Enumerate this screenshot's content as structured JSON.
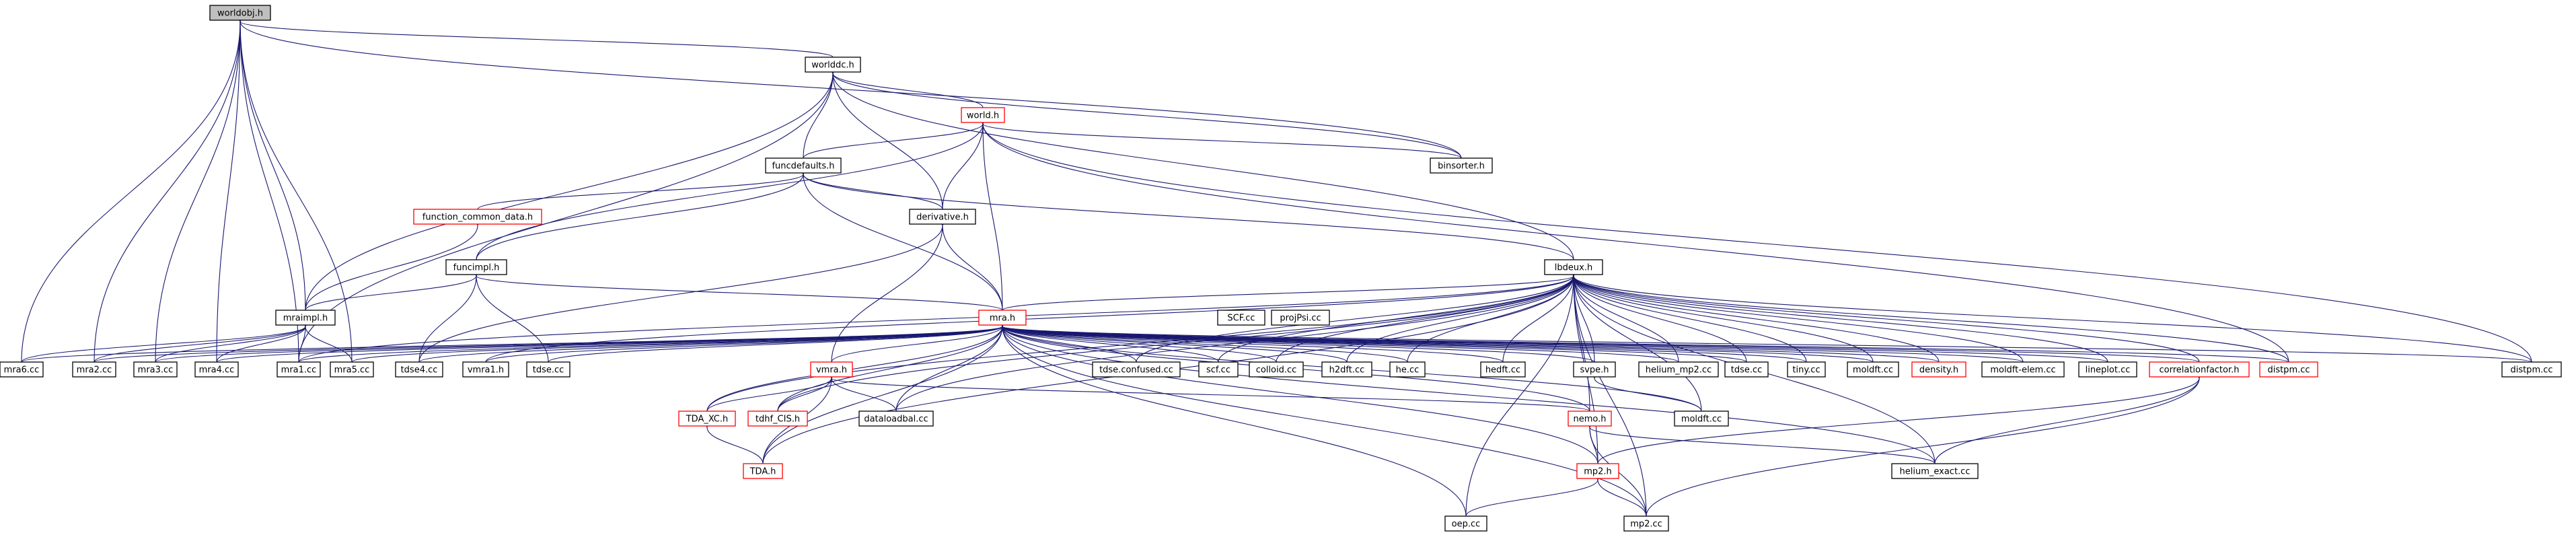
{
  "colors": {
    "edge": "#191970",
    "border_default": "#000000",
    "border_linked": "#ff0000",
    "root_fill": "#bfbfbf"
  },
  "nodes": [
    {
      "id": "worldobj",
      "label": "worldobj.h",
      "root": true
    },
    {
      "id": "worlddc",
      "label": "worlddc.h"
    },
    {
      "id": "world",
      "label": "world.h",
      "red": true
    },
    {
      "id": "funcdefaults",
      "label": "funcdefaults.h"
    },
    {
      "id": "binsorter",
      "label": "binsorter.h"
    },
    {
      "id": "fcd",
      "label": "function_common_data.h",
      "red": true
    },
    {
      "id": "derivative",
      "label": "derivative.h"
    },
    {
      "id": "funcimpl",
      "label": "funcimpl.h"
    },
    {
      "id": "lbdeux",
      "label": "lbdeux.h"
    },
    {
      "id": "mraimpl",
      "label": "mraimpl.h"
    },
    {
      "id": "mra",
      "label": "mra.h",
      "red": true
    },
    {
      "id": "scfcc",
      "label": "SCF.cc"
    },
    {
      "id": "projpsi",
      "label": "projPsi.cc"
    },
    {
      "id": "mra6",
      "label": "mra6.cc"
    },
    {
      "id": "mra2",
      "label": "mra2.cc"
    },
    {
      "id": "mra3",
      "label": "mra3.cc"
    },
    {
      "id": "mra4",
      "label": "mra4.cc"
    },
    {
      "id": "mra1",
      "label": "mra1.cc"
    },
    {
      "id": "mra5",
      "label": "mra5.cc"
    },
    {
      "id": "tdse4",
      "label": "tdse4.cc"
    },
    {
      "id": "vmra1",
      "label": "vmra1.h"
    },
    {
      "id": "tdsecc1",
      "label": "tdse.cc"
    },
    {
      "id": "tdseconf",
      "label": "tdse.confused.cc"
    },
    {
      "id": "scf",
      "label": "scf.cc"
    },
    {
      "id": "colloid",
      "label": "colloid.cc"
    },
    {
      "id": "h2dft",
      "label": "h2dft.cc"
    },
    {
      "id": "he",
      "label": "he.cc"
    },
    {
      "id": "hedft",
      "label": "hedft.cc"
    },
    {
      "id": "svpe",
      "label": "svpe.h"
    },
    {
      "id": "hemp2",
      "label": "helium_mp2.cc"
    },
    {
      "id": "tdsecc2",
      "label": "tdse.cc"
    },
    {
      "id": "tiny",
      "label": "tiny.cc"
    },
    {
      "id": "moldft1",
      "label": "moldft.cc"
    },
    {
      "id": "density",
      "label": "density.h",
      "red": true
    },
    {
      "id": "moldftelem",
      "label": "moldft-elem.cc"
    },
    {
      "id": "lineplot",
      "label": "lineplot.cc"
    },
    {
      "id": "corrfac",
      "label": "correlationfactor.h",
      "red": true
    },
    {
      "id": "distpmh",
      "label": "distpm.cc",
      "red": true
    },
    {
      "id": "distpm",
      "label": "distpm.cc"
    },
    {
      "id": "vmra",
      "label": "vmra.h",
      "red": true
    },
    {
      "id": "tdaxc",
      "label": "TDA_XC.h",
      "red": true
    },
    {
      "id": "tdhf",
      "label": "tdhf_CIS.h",
      "red": true
    },
    {
      "id": "dataload",
      "label": "dataloadbal.cc"
    },
    {
      "id": "nemo",
      "label": "nemo.h",
      "red": true
    },
    {
      "id": "moldft2",
      "label": "moldft.cc"
    },
    {
      "id": "tda",
      "label": "TDA.h",
      "red": true
    },
    {
      "id": "helexact",
      "label": "helium_exact.cc"
    },
    {
      "id": "mp2h",
      "label": "mp2.h",
      "red": true
    },
    {
      "id": "oep",
      "label": "oep.cc"
    },
    {
      "id": "mp2cc",
      "label": "mp2.cc"
    }
  ],
  "edges": [
    [
      "worldobj",
      "worlddc"
    ],
    [
      "worldobj",
      "binsorter"
    ],
    [
      "worldobj",
      "mraimpl"
    ],
    [
      "worldobj",
      "mra6"
    ],
    [
      "worldobj",
      "mra2"
    ],
    [
      "worldobj",
      "mra3"
    ],
    [
      "worldobj",
      "mra4"
    ],
    [
      "worldobj",
      "mra1"
    ],
    [
      "worldobj",
      "mra5"
    ],
    [
      "worlddc",
      "world"
    ],
    [
      "worlddc",
      "funcdefaults"
    ],
    [
      "worlddc",
      "derivative"
    ],
    [
      "worlddc",
      "lbdeux"
    ],
    [
      "worlddc",
      "mraimpl"
    ],
    [
      "worlddc",
      "mra1"
    ],
    [
      "worlddc",
      "binsorter"
    ],
    [
      "world",
      "funcdefaults"
    ],
    [
      "world",
      "binsorter"
    ],
    [
      "world",
      "derivative"
    ],
    [
      "world",
      "mra"
    ],
    [
      "world",
      "funcimpl"
    ],
    [
      "world",
      "distpm"
    ],
    [
      "world",
      "distpmh"
    ],
    [
      "funcdefaults",
      "fcd"
    ],
    [
      "funcdefaults",
      "funcimpl"
    ],
    [
      "funcdefaults",
      "derivative"
    ],
    [
      "funcdefaults",
      "mra"
    ],
    [
      "funcdefaults",
      "lbdeux"
    ],
    [
      "fcd",
      "mraimpl"
    ],
    [
      "derivative",
      "mra"
    ],
    [
      "derivative",
      "vmra"
    ],
    [
      "derivative",
      "tdse4"
    ],
    [
      "funcimpl",
      "mraimpl"
    ],
    [
      "funcimpl",
      "mra"
    ],
    [
      "funcimpl",
      "tdse4"
    ],
    [
      "funcimpl",
      "tdsecc1"
    ],
    [
      "lbdeux",
      "mra"
    ],
    [
      "lbdeux",
      "tdseconf"
    ],
    [
      "lbdeux",
      "scf"
    ],
    [
      "lbdeux",
      "colloid"
    ],
    [
      "lbdeux",
      "h2dft"
    ],
    [
      "lbdeux",
      "he"
    ],
    [
      "lbdeux",
      "hedft"
    ],
    [
      "lbdeux",
      "svpe"
    ],
    [
      "lbdeux",
      "hemp2"
    ],
    [
      "lbdeux",
      "tdsecc2"
    ],
    [
      "lbdeux",
      "tiny"
    ],
    [
      "lbdeux",
      "moldft1"
    ],
    [
      "lbdeux",
      "density"
    ],
    [
      "lbdeux",
      "moldftelem"
    ],
    [
      "lbdeux",
      "lineplot"
    ],
    [
      "lbdeux",
      "corrfac"
    ],
    [
      "lbdeux",
      "distpmh"
    ],
    [
      "lbdeux",
      "distpm"
    ],
    [
      "lbdeux",
      "nemo"
    ],
    [
      "lbdeux",
      "moldft2"
    ],
    [
      "lbdeux",
      "tda"
    ],
    [
      "lbdeux",
      "helexact"
    ],
    [
      "lbdeux",
      "mp2h"
    ],
    [
      "lbdeux",
      "mp2cc"
    ],
    [
      "lbdeux",
      "oep"
    ],
    [
      "lbdeux",
      "tdaxc"
    ],
    [
      "lbdeux",
      "tdhf"
    ],
    [
      "lbdeux",
      "dataload"
    ],
    [
      "lbdeux",
      "vmra1"
    ],
    [
      "lbdeux",
      "mra1"
    ],
    [
      "mraimpl",
      "mra6"
    ],
    [
      "mraimpl",
      "mra2"
    ],
    [
      "mraimpl",
      "mra3"
    ],
    [
      "mraimpl",
      "mra4"
    ],
    [
      "mraimpl",
      "mra1"
    ],
    [
      "mraimpl",
      "mra5"
    ],
    [
      "mra",
      "mra6"
    ],
    [
      "mra",
      "mra2"
    ],
    [
      "mra",
      "mra3"
    ],
    [
      "mra",
      "mra4"
    ],
    [
      "mra",
      "mra1"
    ],
    [
      "mra",
      "mra5"
    ],
    [
      "mra",
      "tdse4"
    ],
    [
      "mra",
      "vmra1"
    ],
    [
      "mra",
      "tdsecc1"
    ],
    [
      "mra",
      "tdseconf"
    ],
    [
      "mra",
      "scf"
    ],
    [
      "mra",
      "colloid"
    ],
    [
      "mra",
      "h2dft"
    ],
    [
      "mra",
      "he"
    ],
    [
      "mra",
      "hedft"
    ],
    [
      "mra",
      "svpe"
    ],
    [
      "mra",
      "hemp2"
    ],
    [
      "mra",
      "tdsecc2"
    ],
    [
      "mra",
      "tiny"
    ],
    [
      "mra",
      "moldft1"
    ],
    [
      "mra",
      "density"
    ],
    [
      "mra",
      "moldftelem"
    ],
    [
      "mra",
      "lineplot"
    ],
    [
      "mra",
      "corrfac"
    ],
    [
      "mra",
      "distpmh"
    ],
    [
      "mra",
      "distpm"
    ],
    [
      "mra",
      "vmra"
    ],
    [
      "mra",
      "tdaxc"
    ],
    [
      "mra",
      "tdhf"
    ],
    [
      "mra",
      "dataload"
    ],
    [
      "mra",
      "nemo"
    ],
    [
      "mra",
      "tda"
    ],
    [
      "mra",
      "mp2h"
    ],
    [
      "mra",
      "oep"
    ],
    [
      "mra",
      "mp2cc"
    ],
    [
      "mra",
      "helexact"
    ],
    [
      "mra",
      "moldft2"
    ],
    [
      "vmra",
      "tdaxc"
    ],
    [
      "vmra",
      "tdhf"
    ],
    [
      "vmra",
      "dataload"
    ],
    [
      "vmra",
      "nemo"
    ],
    [
      "vmra",
      "tda"
    ],
    [
      "tdaxc",
      "tda"
    ],
    [
      "svpe",
      "moldft2"
    ],
    [
      "corrfac",
      "helexact"
    ],
    [
      "corrfac",
      "mp2h"
    ],
    [
      "corrfac",
      "mp2cc"
    ],
    [
      "nemo",
      "mp2h"
    ],
    [
      "nemo",
      "mp2cc"
    ],
    [
      "nemo",
      "helexact"
    ],
    [
      "mp2h",
      "oep"
    ],
    [
      "mp2h",
      "mp2cc"
    ]
  ]
}
